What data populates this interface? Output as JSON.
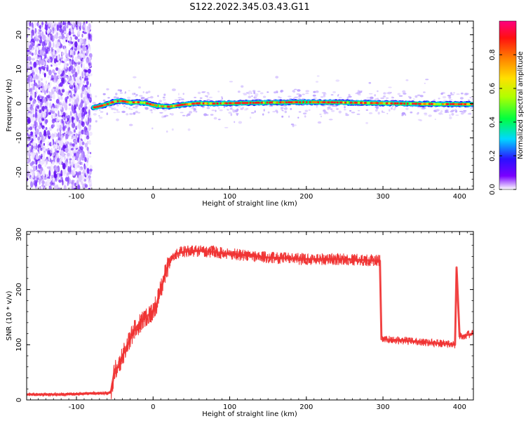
{
  "title": "S122.2022.345.03.43.G11",
  "chart_data": [
    {
      "type": "heatmap",
      "xlabel": "Height of straight line (km)",
      "ylabel": "Frequency (Hz)",
      "xlim": [
        -165,
        418
      ],
      "ylim": [
        -25,
        24
      ],
      "xticks": [
        -100,
        0,
        100,
        200,
        300,
        400
      ],
      "yticks": [
        -20,
        -10,
        0,
        10,
        20
      ],
      "noise_region_x": [
        -165,
        -81
      ],
      "ridge": {
        "x": [
          -78,
          -70,
          -60,
          -50,
          -40,
          -30,
          -20,
          -10,
          0,
          10,
          20,
          30,
          40,
          50,
          60,
          70,
          80,
          100,
          150,
          200,
          250,
          300,
          350,
          400,
          418
        ],
        "y": [
          -1.2,
          -0.8,
          -0.2,
          0.6,
          0.7,
          0.3,
          0.4,
          0.2,
          -0.4,
          -0.8,
          -0.9,
          -0.6,
          -0.3,
          -0.1,
          0.1,
          0.0,
          0.0,
          0.1,
          0.3,
          0.4,
          0.3,
          0.1,
          -0.1,
          -0.2,
          -0.2
        ]
      },
      "colorbar": {
        "label": "Normalized spectral amplitude",
        "range": [
          0.0,
          1.0
        ],
        "ticks": [
          "0.0",
          "0.2",
          "0.4",
          "0.6",
          "0.8"
        ]
      }
    },
    {
      "type": "line",
      "xlabel": "Height of straight line (km)",
      "ylabel": "SNR (10 * v/v)",
      "xlim": [
        -165,
        418
      ],
      "ylim": [
        0,
        305
      ],
      "xticks": [
        -100,
        0,
        100,
        200,
        300,
        400
      ],
      "yticks": [
        0,
        100,
        200,
        300
      ],
      "color": "#f03434",
      "series": [
        {
          "x": [
            -165,
            -120,
            -80,
            -60,
            -55,
            -50,
            -45,
            -40,
            -35,
            -30,
            -25,
            -20,
            -10,
            0,
            5,
            10,
            15,
            20,
            25,
            30,
            40,
            50,
            60,
            80,
            95,
            100,
            120,
            150,
            200,
            250,
            296,
            298,
            300,
            320,
            350,
            380,
            394,
            396,
            400,
            418
          ],
          "y": [
            10,
            10,
            12,
            12,
            15,
            55,
            60,
            80,
            95,
            110,
            125,
            135,
            150,
            160,
            175,
            200,
            225,
            245,
            258,
            265,
            268,
            270,
            270,
            268,
            265,
            265,
            262,
            258,
            255,
            255,
            252,
            110,
            110,
            108,
            105,
            102,
            100,
            240,
            115,
            120
          ]
        }
      ]
    }
  ]
}
